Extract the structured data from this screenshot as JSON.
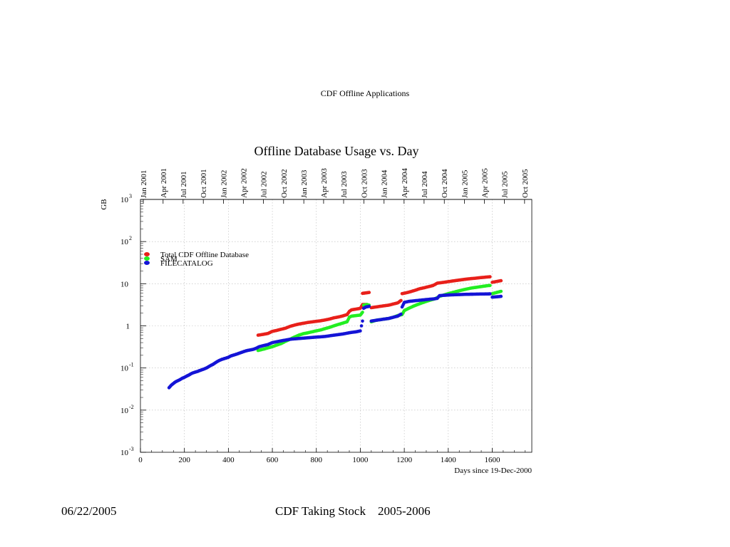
{
  "slide": {
    "header": "CDF Offline Applications",
    "footer_date": "06/22/2005",
    "footer_title": "CDF Taking Stock    2005-2006"
  },
  "chart_data": {
    "type": "scatter",
    "title": "Offline Database Usage vs. Day",
    "xlabel": "Days since 19-Dec-2000",
    "ylabel": "GB",
    "xlim": [
      0,
      1780
    ],
    "ylim": [
      0.001,
      1000
    ],
    "yscale": "log",
    "grid": true,
    "legend_position": "top-left",
    "x_ticks": [
      0,
      200,
      400,
      600,
      800,
      1000,
      1200,
      1400,
      1600
    ],
    "y_ticks": [
      {
        "value": 1000,
        "base": "10",
        "exp": "3"
      },
      {
        "value": 100,
        "base": "10",
        "exp": "2"
      },
      {
        "value": 10,
        "base": "10",
        "exp": ""
      },
      {
        "value": 1,
        "base": "1",
        "exp": ""
      },
      {
        "value": 0.1,
        "base": "10",
        "exp": "-1"
      },
      {
        "value": 0.01,
        "base": "10",
        "exp": "-2"
      },
      {
        "value": 0.001,
        "base": "10",
        "exp": "-3"
      }
    ],
    "top_axis_dates": [
      {
        "label": "Jan 2001",
        "day": 13
      },
      {
        "label": "Apr 2001",
        "day": 103
      },
      {
        "label": "Jul 2001",
        "day": 194
      },
      {
        "label": "Oct 2001",
        "day": 286
      },
      {
        "label": "Jan 2002",
        "day": 378
      },
      {
        "label": "Apr 2002",
        "day": 468
      },
      {
        "label": "Jul 2002",
        "day": 559
      },
      {
        "label": "Oct 2002",
        "day": 651
      },
      {
        "label": "Jan 2003",
        "day": 743
      },
      {
        "label": "Apr 2003",
        "day": 833
      },
      {
        "label": "Jul 2003",
        "day": 924
      },
      {
        "label": "Oct 2003",
        "day": 1016
      },
      {
        "label": "Jan 2004",
        "day": 1108
      },
      {
        "label": "Apr 2004",
        "day": 1199
      },
      {
        "label": "Jul 2004",
        "day": 1290
      },
      {
        "label": "Oct 2004",
        "day": 1382
      },
      {
        "label": "Jan 2005",
        "day": 1474
      },
      {
        "label": "Apr 2005",
        "day": 1564
      },
      {
        "label": "Jul 2005",
        "day": 1655
      },
      {
        "label": "Oct 2005",
        "day": 1747
      }
    ],
    "series": [
      {
        "name": "Total CDF Offline Database",
        "color": "#e8201a",
        "segments": [
          [
            [
              535,
              0.6
            ],
            [
              560,
              0.63
            ],
            [
              580,
              0.66
            ],
            [
              600,
              0.74
            ],
            [
              620,
              0.78
            ],
            [
              640,
              0.83
            ],
            [
              660,
              0.88
            ],
            [
              680,
              0.97
            ],
            [
              700,
              1.04
            ],
            [
              720,
              1.1
            ],
            [
              740,
              1.15
            ],
            [
              760,
              1.2
            ],
            [
              780,
              1.24
            ],
            [
              800,
              1.28
            ],
            [
              820,
              1.32
            ],
            [
              840,
              1.38
            ],
            [
              860,
              1.45
            ],
            [
              880,
              1.55
            ],
            [
              900,
              1.62
            ],
            [
              920,
              1.72
            ],
            [
              940,
              1.85
            ],
            [
              950,
              2.2
            ],
            [
              960,
              2.4
            ],
            [
              980,
              2.5
            ],
            [
              1000,
              2.6
            ],
            [
              1010,
              3.2
            ],
            [
              1030,
              3.2
            ]
          ],
          [
            [
              1010,
              5.9
            ],
            [
              1020,
              6.0
            ],
            [
              1030,
              6.1
            ],
            [
              1040,
              6.2
            ]
          ],
          [
            [
              1050,
              2.7
            ],
            [
              1070,
              2.8
            ],
            [
              1090,
              2.9
            ],
            [
              1110,
              3.0
            ],
            [
              1130,
              3.1
            ],
            [
              1150,
              3.3
            ],
            [
              1170,
              3.5
            ],
            [
              1185,
              4.0
            ],
            [
              1190,
              5.8
            ],
            [
              1210,
              6.1
            ],
            [
              1230,
              6.5
            ],
            [
              1250,
              7.0
            ],
            [
              1270,
              7.6
            ],
            [
              1290,
              8.0
            ],
            [
              1310,
              8.5
            ],
            [
              1330,
              9.0
            ],
            [
              1350,
              10.3
            ],
            [
              1370,
              10.6
            ],
            [
              1390,
              11.0
            ],
            [
              1410,
              11.4
            ],
            [
              1430,
              11.8
            ],
            [
              1450,
              12.2
            ],
            [
              1470,
              12.6
            ],
            [
              1490,
              13.0
            ],
            [
              1510,
              13.3
            ],
            [
              1530,
              13.6
            ],
            [
              1550,
              14.0
            ],
            [
              1570,
              14.3
            ],
            [
              1590,
              14.6
            ]
          ],
          [
            [
              1600,
              10.8
            ],
            [
              1620,
              11.3
            ],
            [
              1640,
              11.8
            ]
          ]
        ]
      },
      {
        "name": "SAM",
        "color": "#22ee22",
        "segments": [
          [
            [
              535,
              0.26
            ],
            [
              560,
              0.28
            ],
            [
              580,
              0.3
            ],
            [
              600,
              0.32
            ],
            [
              620,
              0.35
            ],
            [
              640,
              0.38
            ],
            [
              660,
              0.43
            ],
            [
              680,
              0.48
            ],
            [
              700,
              0.54
            ],
            [
              720,
              0.6
            ],
            [
              740,
              0.65
            ],
            [
              760,
              0.68
            ],
            [
              780,
              0.72
            ],
            [
              800,
              0.76
            ],
            [
              820,
              0.8
            ],
            [
              840,
              0.86
            ],
            [
              860,
              0.92
            ],
            [
              880,
              1.0
            ],
            [
              900,
              1.08
            ],
            [
              920,
              1.16
            ],
            [
              940,
              1.25
            ],
            [
              950,
              1.6
            ],
            [
              960,
              1.7
            ],
            [
              980,
              1.75
            ],
            [
              1000,
              1.8
            ],
            [
              1010,
              2.1
            ],
            [
              1015,
              3.1
            ],
            [
              1030,
              3.2
            ],
            [
              1040,
              3.1
            ]
          ],
          [
            [
              1050,
              1.25
            ],
            [
              1070,
              1.35
            ],
            [
              1090,
              1.4
            ],
            [
              1110,
              1.45
            ],
            [
              1130,
              1.5
            ],
            [
              1150,
              1.6
            ],
            [
              1170,
              1.75
            ],
            [
              1190,
              1.85
            ],
            [
              1200,
              2.3
            ],
            [
              1220,
              2.6
            ],
            [
              1240,
              2.9
            ],
            [
              1260,
              3.2
            ],
            [
              1280,
              3.5
            ],
            [
              1300,
              3.8
            ],
            [
              1320,
              4.1
            ],
            [
              1340,
              4.4
            ],
            [
              1360,
              5.0
            ],
            [
              1380,
              5.4
            ],
            [
              1400,
              5.8
            ],
            [
              1420,
              6.2
            ],
            [
              1440,
              6.6
            ],
            [
              1460,
              7.0
            ],
            [
              1480,
              7.4
            ],
            [
              1500,
              7.8
            ],
            [
              1520,
              8.1
            ],
            [
              1540,
              8.4
            ],
            [
              1560,
              8.7
            ],
            [
              1580,
              9.0
            ],
            [
              1590,
              9.1
            ]
          ],
          [
            [
              1600,
              5.8
            ],
            [
              1620,
              6.2
            ],
            [
              1640,
              6.6
            ]
          ]
        ]
      },
      {
        "name": "FILECATALOG",
        "color": "#1414d6",
        "segments": [
          [
            [
              130,
              0.034
            ],
            [
              140,
              0.039
            ],
            [
              150,
              0.043
            ],
            [
              160,
              0.047
            ],
            [
              170,
              0.05
            ],
            [
              180,
              0.053
            ],
            [
              190,
              0.057
            ],
            [
              200,
              0.06
            ],
            [
              210,
              0.064
            ],
            [
              220,
              0.068
            ],
            [
              230,
              0.073
            ],
            [
              240,
              0.077
            ],
            [
              250,
              0.08
            ],
            [
              260,
              0.083
            ],
            [
              270,
              0.087
            ],
            [
              280,
              0.091
            ],
            [
              290,
              0.095
            ],
            [
              300,
              0.1
            ],
            [
              310,
              0.107
            ],
            [
              320,
              0.115
            ],
            [
              330,
              0.122
            ],
            [
              340,
              0.132
            ],
            [
              350,
              0.143
            ],
            [
              360,
              0.152
            ],
            [
              370,
              0.16
            ],
            [
              380,
              0.166
            ],
            [
              390,
              0.172
            ],
            [
              400,
              0.18
            ],
            [
              410,
              0.192
            ],
            [
              420,
              0.2
            ],
            [
              430,
              0.207
            ],
            [
              440,
              0.215
            ],
            [
              450,
              0.225
            ],
            [
              460,
              0.235
            ],
            [
              470,
              0.245
            ],
            [
              480,
              0.255
            ],
            [
              490,
              0.262
            ],
            [
              500,
              0.268
            ],
            [
              510,
              0.275
            ],
            [
              520,
              0.285
            ],
            [
              530,
              0.3
            ],
            [
              540,
              0.32
            ],
            [
              550,
              0.33
            ],
            [
              560,
              0.34
            ],
            [
              570,
              0.35
            ],
            [
              580,
              0.36
            ],
            [
              590,
              0.38
            ],
            [
              600,
              0.4
            ],
            [
              620,
              0.42
            ],
            [
              640,
              0.44
            ],
            [
              660,
              0.46
            ],
            [
              680,
              0.48
            ],
            [
              700,
              0.49
            ],
            [
              720,
              0.5
            ],
            [
              740,
              0.51
            ],
            [
              760,
              0.52
            ],
            [
              780,
              0.53
            ],
            [
              800,
              0.54
            ],
            [
              820,
              0.55
            ],
            [
              840,
              0.56
            ],
            [
              860,
              0.58
            ],
            [
              880,
              0.6
            ],
            [
              900,
              0.62
            ],
            [
              920,
              0.64
            ],
            [
              940,
              0.67
            ],
            [
              960,
              0.7
            ],
            [
              980,
              0.72
            ],
            [
              995,
              0.75
            ],
            [
              1000,
              0.76
            ],
            [
              1005,
              1.0
            ],
            [
              1010,
              1.3
            ],
            [
              1015,
              2.6
            ],
            [
              1025,
              2.8
            ],
            [
              1040,
              2.9
            ]
          ],
          [
            [
              1050,
              1.3
            ],
            [
              1070,
              1.35
            ],
            [
              1090,
              1.4
            ],
            [
              1110,
              1.45
            ],
            [
              1130,
              1.5
            ],
            [
              1150,
              1.6
            ],
            [
              1170,
              1.7
            ],
            [
              1185,
              1.9
            ],
            [
              1190,
              2.8
            ],
            [
              1200,
              3.6
            ],
            [
              1220,
              3.8
            ],
            [
              1240,
              3.9
            ],
            [
              1260,
              4.0
            ],
            [
              1280,
              4.1
            ],
            [
              1300,
              4.2
            ],
            [
              1320,
              4.3
            ],
            [
              1340,
              4.4
            ],
            [
              1350,
              4.5
            ],
            [
              1360,
              5.2
            ],
            [
              1380,
              5.3
            ],
            [
              1400,
              5.4
            ],
            [
              1420,
              5.45
            ],
            [
              1440,
              5.5
            ],
            [
              1460,
              5.55
            ],
            [
              1480,
              5.6
            ],
            [
              1500,
              5.62
            ],
            [
              1520,
              5.65
            ],
            [
              1540,
              5.68
            ],
            [
              1560,
              5.7
            ],
            [
              1580,
              5.72
            ],
            [
              1590,
              5.74
            ]
          ],
          [
            [
              1600,
              4.8
            ],
            [
              1620,
              4.9
            ],
            [
              1640,
              5.0
            ]
          ]
        ]
      }
    ]
  }
}
